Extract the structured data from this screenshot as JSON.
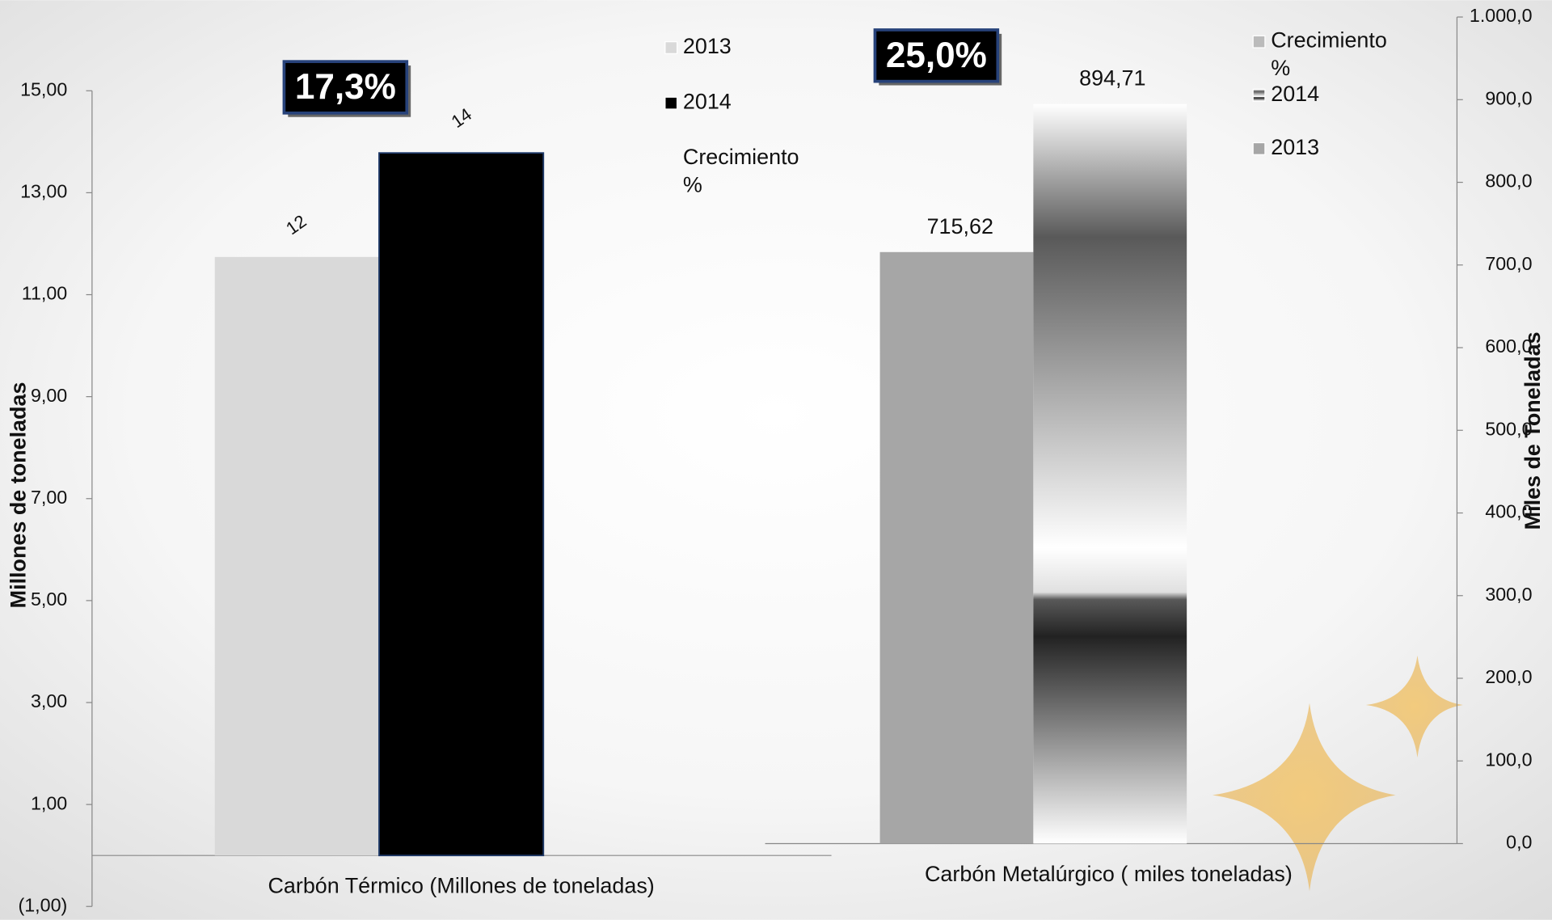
{
  "chart_data": [
    {
      "type": "bar",
      "categories": [
        "Carbón Térmico  (Millones de toneladas)"
      ],
      "ylabel": "Millones de toneladas",
      "ylim": [
        -1,
        15
      ],
      "yticks": [
        {
          "value": -1,
          "label": "(1,00)"
        },
        {
          "value": 1,
          "label": "1,00"
        },
        {
          "value": 3,
          "label": "3,00"
        },
        {
          "value": 5,
          "label": "5,00"
        },
        {
          "value": 7,
          "label": "7,00"
        },
        {
          "value": 9,
          "label": "9,00"
        },
        {
          "value": 11,
          "label": "11,00"
        },
        {
          "value": 13,
          "label": "13,00"
        },
        {
          "value": 15,
          "label": "15,00"
        }
      ],
      "series": [
        {
          "name": "2013",
          "color": "#d9d9d9",
          "values": [
            11.74
          ],
          "value_labels": [
            "12"
          ]
        },
        {
          "name": "2014",
          "color": "#000000",
          "values": [
            13.78
          ],
          "value_labels": [
            "14"
          ]
        },
        {
          "name": "Crecimiento %",
          "color": "#000000",
          "values": [
            17.3
          ],
          "value_labels": [
            "17,3%"
          ]
        }
      ]
    },
    {
      "type": "bar",
      "categories": [
        "Carbón Metalúrgico ( miles toneladas)"
      ],
      "ylabel": "Miles de Toneladas",
      "ylim": [
        0,
        1000
      ],
      "yticks": [
        {
          "value": 0,
          "label": "0,0"
        },
        {
          "value": 100,
          "label": "100,0"
        },
        {
          "value": 200,
          "label": "200,0"
        },
        {
          "value": 300,
          "label": "300,0"
        },
        {
          "value": 400,
          "label": "400,0"
        },
        {
          "value": 500,
          "label": "500,0"
        },
        {
          "value": 600,
          "label": "600,0"
        },
        {
          "value": 700,
          "label": "700,0"
        },
        {
          "value": 800,
          "label": "800,0"
        },
        {
          "value": 900,
          "label": "900,0"
        },
        {
          "value": 1000,
          "label": "1.000,0"
        }
      ],
      "series": [
        {
          "name": "2013",
          "color": "#a6a6a6",
          "values": [
            715.62
          ],
          "value_labels": [
            "715,62"
          ]
        },
        {
          "name": "2014",
          "color": "#595959",
          "values": [
            894.71
          ],
          "value_labels": [
            "894,71"
          ]
        },
        {
          "name": "Crecimiento %",
          "color": "#000000",
          "values": [
            25.0
          ],
          "value_labels": [
            "25,0%"
          ]
        }
      ]
    }
  ]
}
